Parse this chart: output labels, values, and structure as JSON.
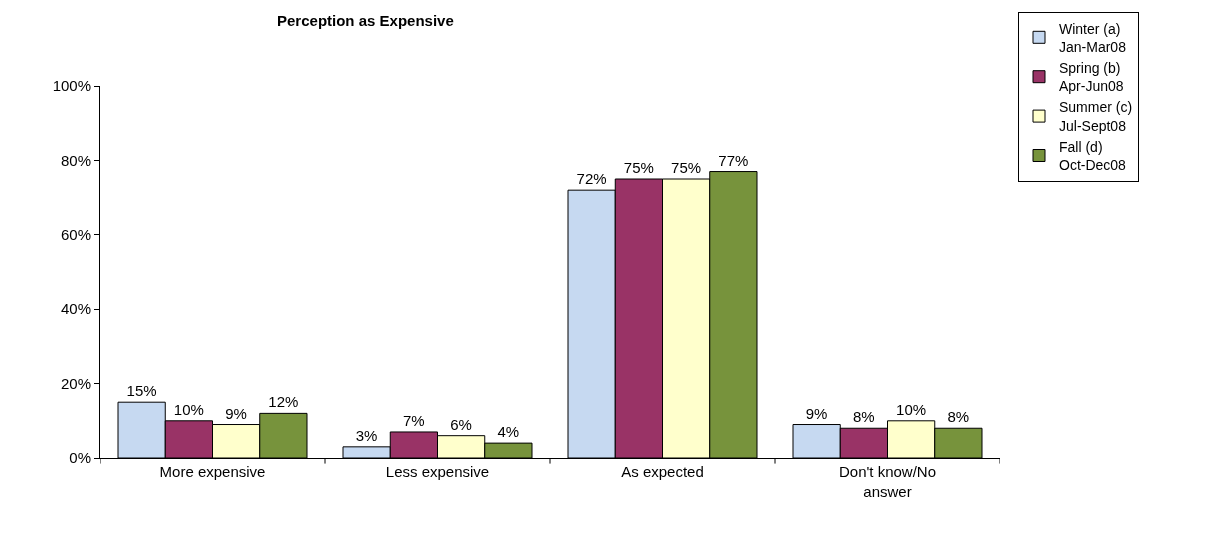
{
  "chart_data": {
    "type": "bar",
    "title": "Perception as Expensive",
    "categories": [
      "More expensive",
      "Less expensive",
      "As expected",
      "Don't know/No answer"
    ],
    "series": [
      {
        "name": "Winter (a)\nJan-Mar08",
        "color": "#c6d9f1",
        "values": [
          15,
          3,
          72,
          9
        ],
        "value_labels": [
          "15%",
          "3%",
          "72%",
          "9%"
        ]
      },
      {
        "name": "Spring (b)\nApr-Jun08",
        "color": "#993366",
        "values": [
          10,
          7,
          75,
          8
        ],
        "value_labels": [
          "10%",
          "7%",
          "75%",
          "8%"
        ]
      },
      {
        "name": "Summer (c)\nJul-Sept08",
        "color": "#ffffcc",
        "values": [
          9,
          6,
          75,
          10
        ],
        "value_labels": [
          "9%",
          "6%",
          "75%",
          "10%"
        ]
      },
      {
        "name": "Fall (d)\nOct-Dec08",
        "color": "#77933c",
        "values": [
          12,
          4,
          77,
          8
        ],
        "value_labels": [
          "12%",
          "4%",
          "77%",
          "8%"
        ]
      }
    ],
    "ylim": [
      0,
      100
    ],
    "yticks": [
      {
        "value": 0,
        "label": "0%"
      },
      {
        "value": 20,
        "label": "20%"
      },
      {
        "value": 40,
        "label": "40%"
      },
      {
        "value": 60,
        "label": "60%"
      },
      {
        "value": 80,
        "label": "80%"
      },
      {
        "value": 100,
        "label": "100%"
      }
    ],
    "grid": false,
    "legend": "top right"
  }
}
